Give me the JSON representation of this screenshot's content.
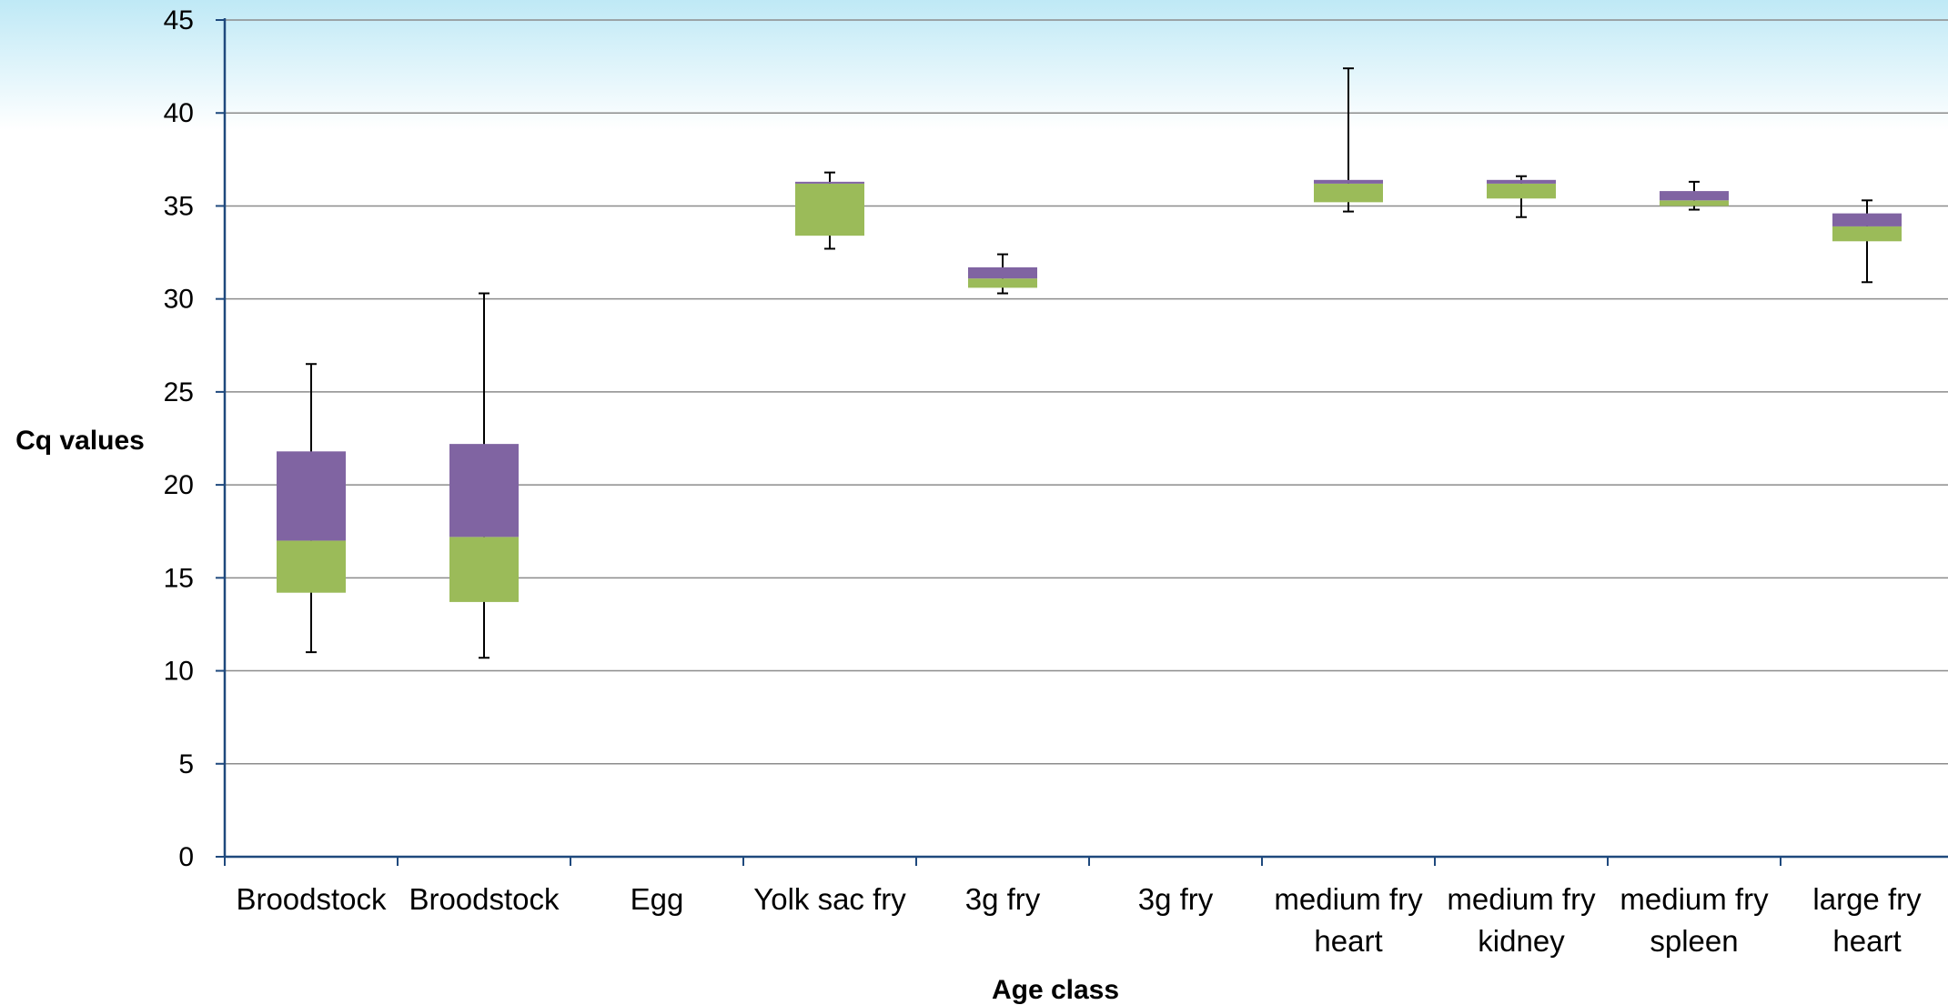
{
  "chart_data": {
    "type": "boxplot",
    "title": "",
    "xlabel": "Age class",
    "ylabel": "Cq values",
    "ylim": [
      0,
      45
    ],
    "yticks": [
      0,
      5,
      10,
      15,
      20,
      25,
      30,
      35,
      40,
      45
    ],
    "grid": true,
    "legend": "none",
    "colors": {
      "lower_box": "#9BBB59",
      "upper_box": "#8064A2",
      "grid": "#8c8c8c",
      "axis": "#1f497d",
      "whisker": "#000000",
      "bg_top": "#bfe9f6"
    },
    "categories": [
      [
        "Broodstock"
      ],
      [
        "Broodstock"
      ],
      [
        "Egg"
      ],
      [
        "Yolk sac fry"
      ],
      [
        "3g fry"
      ],
      [
        "3g fry"
      ],
      [
        "medium fry",
        "heart"
      ],
      [
        "medium fry",
        "kidney"
      ],
      [
        "medium fry",
        "spleen"
      ],
      [
        "large fry",
        "heart"
      ]
    ],
    "boxes": [
      {
        "min": 11.0,
        "q1": 14.2,
        "median": 17.0,
        "q3": 21.8,
        "max": 26.5
      },
      {
        "min": 10.7,
        "q1": 13.7,
        "median": 17.2,
        "q3": 22.2,
        "max": 30.3
      },
      null,
      {
        "min": 32.7,
        "q1": 33.4,
        "median": 36.2,
        "q3": 36.3,
        "max": 36.8
      },
      {
        "min": 30.3,
        "q1": 30.6,
        "median": 31.1,
        "q3": 31.7,
        "max": 32.4
      },
      null,
      {
        "min": 34.7,
        "q1": 35.2,
        "median": 36.2,
        "q3": 36.4,
        "max": 42.4
      },
      {
        "min": 34.4,
        "q1": 35.4,
        "median": 36.2,
        "q3": 36.4,
        "max": 36.6
      },
      {
        "min": 34.8,
        "q1": 35.0,
        "median": 35.3,
        "q3": 35.8,
        "max": 36.3
      },
      {
        "min": 30.9,
        "q1": 33.1,
        "median": 33.9,
        "q3": 34.6,
        "max": 35.3
      }
    ]
  }
}
